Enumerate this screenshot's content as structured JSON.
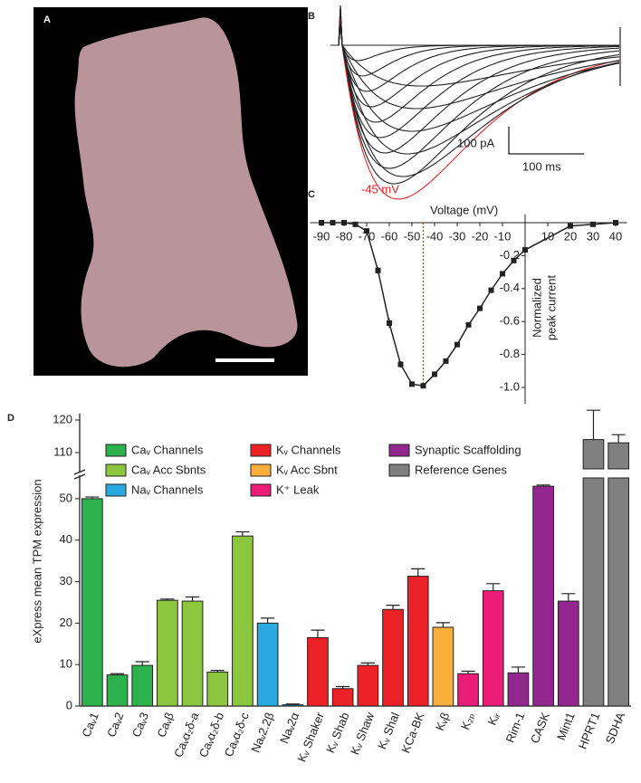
{
  "image": {
    "panel": "A"
  },
  "chart_data": [
    {
      "type": "traces",
      "panel": "B",
      "scale_y": "100 pA",
      "scale_x": "100 ms",
      "annotation": "-45 mV",
      "annotation_color": "#e8242b"
    },
    {
      "type": "line",
      "panel": "C",
      "xlabel": "Voltage (mV)",
      "ylabel": [
        "Normalized",
        "peak current"
      ],
      "x": [
        -90,
        -85,
        -80,
        -75,
        -70,
        -65,
        -60,
        -55,
        -50,
        -45,
        -40,
        -35,
        -30,
        -25,
        -20,
        -15,
        -10,
        -5,
        0,
        20,
        30,
        40
      ],
      "values": [
        0,
        0,
        0,
        -0.01,
        -0.05,
        -0.29,
        -0.61,
        -0.86,
        -0.98,
        -0.99,
        -0.92,
        -0.84,
        -0.74,
        -0.62,
        -0.52,
        -0.41,
        -0.31,
        -0.23,
        -0.165,
        -0.02,
        -0.01,
        0
      ],
      "errors": [
        0.005,
        0.005,
        0.005,
        0.01,
        0.01,
        0.02,
        0.03,
        0.02,
        0.01,
        0.01,
        0.01,
        0.01,
        0.01,
        0.01,
        0.01,
        0.01,
        0.01,
        0.01,
        0.01,
        0.01,
        0.01,
        0.01
      ],
      "color": "#222222",
      "xlim": [
        -95,
        45
      ],
      "ylim": [
        -1.1,
        0.05
      ],
      "xticks": [
        -90,
        -80,
        -70,
        -60,
        -50,
        -40,
        -30,
        -20,
        -10,
        10,
        20,
        30,
        40
      ],
      "yticks": [
        -0.2,
        -0.4,
        -0.6,
        -0.8,
        {
          "value": -1,
          "label": "-1.0"
        }
      ],
      "reference_line": {
        "x": -45,
        "color": "#e8242b"
      }
    },
    {
      "type": "bar",
      "panel": "D",
      "ylabel": "eXpress mean TPM expression",
      "categories": [
        "Caᵥ1",
        "Caᵥ2",
        "Caᵥ3",
        "Caᵥβ",
        "Caᵥα₂δ-a",
        "Caᵥα₂δ-b",
        "Caᵥα₂δ-c",
        "Naᵥ2.2β",
        "Naᵥ2α",
        "Kᵥ Shaker",
        "Kᵥ Shab",
        "Kᵥ Shaw",
        "Kᵥ Shal",
        "KCa-BK",
        "Kᵥβ",
        "K₂ₚ",
        "Kᵢᵣ",
        "Rim-1",
        "CASK",
        "Mint1",
        "HPRT1",
        "SDHA"
      ],
      "values": [
        50,
        7.5,
        9.8,
        25.5,
        25.3,
        8.2,
        41,
        20,
        0.3,
        16.5,
        4.2,
        9.8,
        23.3,
        31.3,
        19,
        7.8,
        27.8,
        8,
        53,
        25.3,
        114,
        113
      ],
      "errors": [
        0.4,
        0.3,
        0.9,
        0.3,
        1,
        0.4,
        1,
        1.2,
        0.2,
        1.8,
        0.5,
        0.6,
        1,
        1.8,
        1.1,
        0.6,
        1.7,
        1.4,
        0.3,
        1.8,
        9,
        2.5
      ],
      "groups": [
        0,
        0,
        0,
        1,
        1,
        1,
        1,
        2,
        2,
        3,
        3,
        3,
        3,
        3,
        4,
        5,
        5,
        6,
        6,
        6,
        7,
        7
      ],
      "legend": [
        {
          "name": "Caᵥ Channels",
          "color": "#2bb24c"
        },
        {
          "name": "Caᵥ Acc Sbnts",
          "color": "#8cc63f"
        },
        {
          "name": "Naᵥ Channels",
          "color": "#29a9e0"
        },
        {
          "name": "Kᵥ Channels",
          "color": "#ec2227"
        },
        {
          "name": "Kᵥ Acc Sbnt",
          "color": "#fbae3c"
        },
        {
          "name": "K⁺ Leak",
          "color": "#ec1c79"
        },
        {
          "name": "Synaptic Scaffolding",
          "color": "#93278f"
        },
        {
          "name": "Reference Genes",
          "color": "#808080"
        }
      ],
      "ylim": [
        0,
        122
      ],
      "ybreak": [
        55,
        105
      ],
      "yticks": [
        0,
        10,
        20,
        30,
        40,
        50,
        110,
        120
      ]
    }
  ]
}
